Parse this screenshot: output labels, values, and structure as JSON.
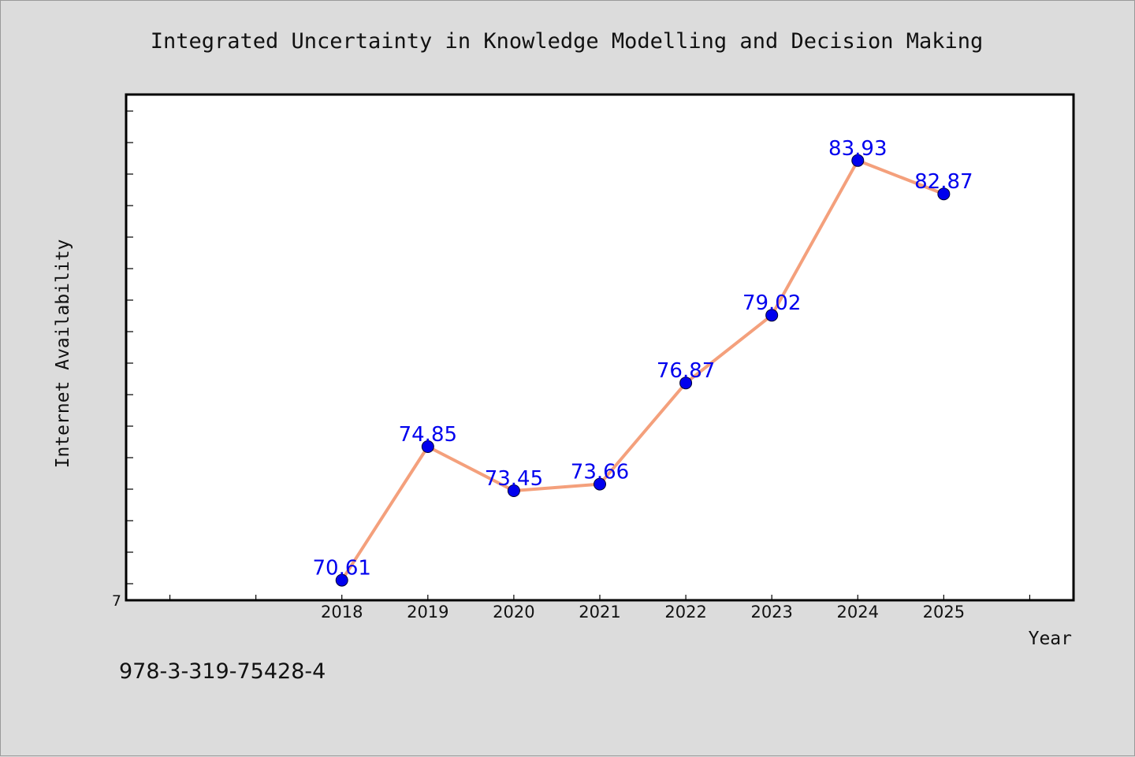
{
  "figure": {
    "footer_text": "978-3-319-75428-4"
  },
  "chart_data": {
    "type": "line",
    "title": "Integrated Uncertainty in Knowledge Modelling and Decision Making",
    "xlabel": "Year",
    "ylabel": "Internet Availability",
    "x": [
      "2018",
      "2019",
      "2020",
      "2021",
      "2022",
      "2023",
      "2024",
      "2025"
    ],
    "series": [
      {
        "values": [
          70.61,
          74.85,
          73.45,
          73.66,
          76.87,
          79.02,
          83.93,
          82.87
        ],
        "data_labels": [
          "70.61",
          "74.85",
          "73.45",
          "73.66",
          "76.87",
          "79.02",
          "83.93",
          "82.87"
        ],
        "line_color": "#f4a07c",
        "marker_color": "#0000ee",
        "label_color": "#0000ee"
      }
    ],
    "xlim": [
      2015.5,
      2026.5
    ],
    "ylim": [
      70,
      86
    ],
    "y_ticks_printed": [
      "7"
    ],
    "grid": false,
    "legend": "none"
  }
}
